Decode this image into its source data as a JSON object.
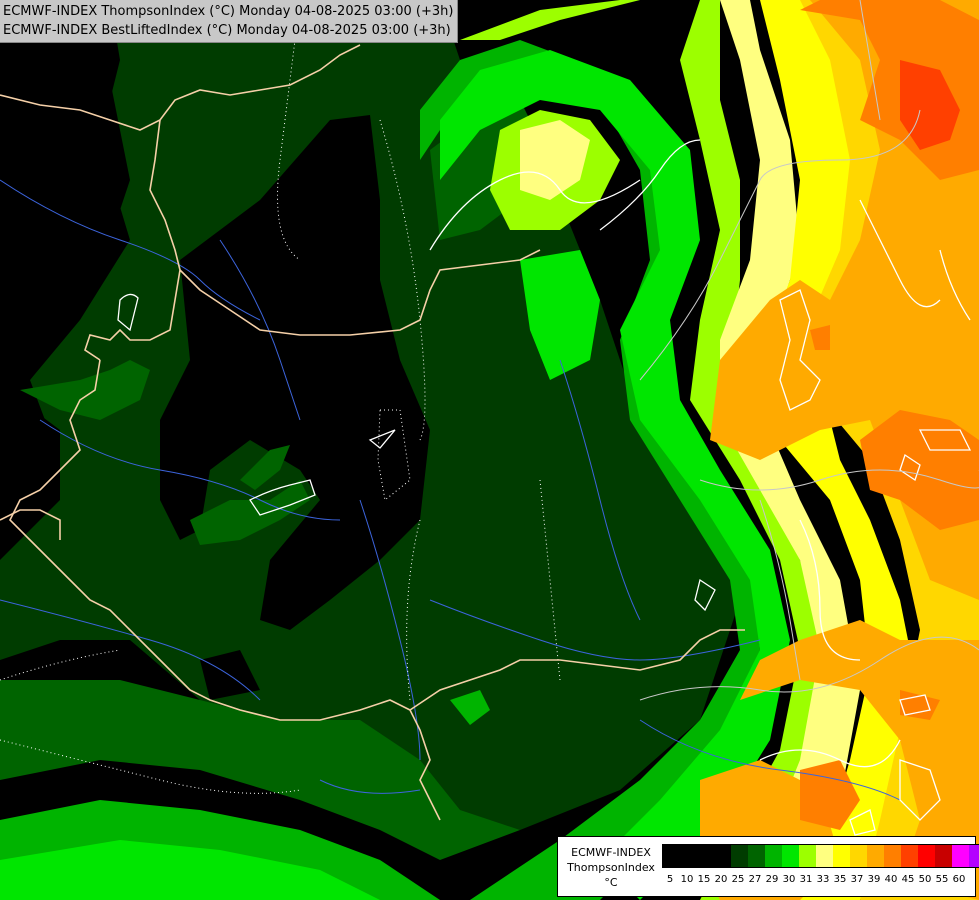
{
  "header": {
    "line1": "ECMWF-INDEX ThompsonIndex (°C) Monday 04-08-2025 03:00 (+3h)",
    "line2": "ECMWF-INDEX BestLiftedIndex (°C) Monday 04-08-2025 03:00 (+3h)"
  },
  "legend": {
    "title1": "ECMWF-INDEX",
    "title2": "ThompsonIndex",
    "unit": "°C",
    "ticks": [
      "5",
      "10",
      "15",
      "20",
      "25",
      "27",
      "29",
      "30",
      "31",
      "33",
      "35",
      "37",
      "39",
      "40",
      "45",
      "50",
      "55",
      "60"
    ],
    "colors": [
      "#000000",
      "#000000",
      "#000000",
      "#000000",
      "#003c00",
      "#006400",
      "#00b400",
      "#00e600",
      "#9cff00",
      "#ffff80",
      "#ffff00",
      "#ffd700",
      "#ffaa00",
      "#ff7f00",
      "#ff4000",
      "#ff0000",
      "#c80000",
      "#ff00ff",
      "#b400ff",
      "#6400ff",
      "#0000ff"
    ]
  },
  "map": {
    "field_colors": {
      "lt20": "#000000",
      "c20_25": "#003c00",
      "c25_27": "#006400",
      "c27_29": "#00b400",
      "c29_30": "#00e600",
      "c30_31": "#9cff00",
      "c31_33": "#ffff80",
      "c33_35": "#ffff00",
      "c35_37": "#ffd700",
      "c37_39": "#ffaa00",
      "c39_40": "#ff7f00",
      "c40_45": "#ff4000"
    },
    "border_color": "#f5d0a8",
    "river_color": "#3c64dc",
    "contour_color": "#ffffff"
  }
}
